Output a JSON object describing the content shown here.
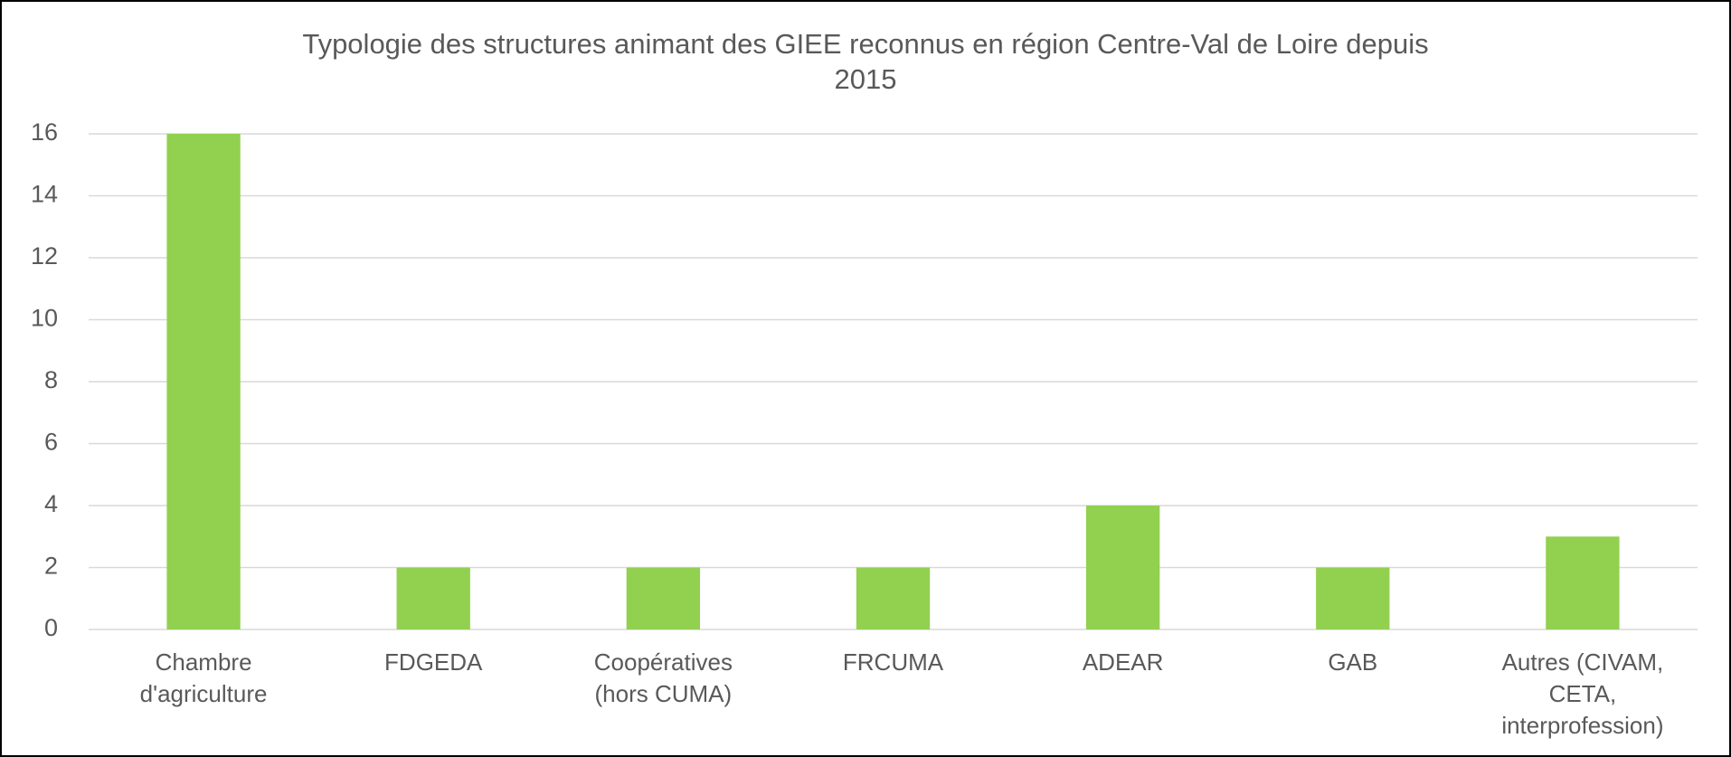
{
  "chart_data": {
    "type": "bar",
    "title": "Typologie des structures animant des GIEE reconnus en région Centre-Val de Loire depuis\n2015",
    "categories": [
      "Chambre\nd'agriculture",
      "FDGEDA",
      "Coopératives\n(hors CUMA)",
      "FRCUMA",
      "ADEAR",
      "GAB",
      "Autres (CIVAM,\nCETA,\ninterprofession)"
    ],
    "values": [
      16,
      2,
      2,
      2,
      4,
      2,
      3
    ],
    "color": "#92d050",
    "ylim": [
      0,
      16
    ],
    "yticks": [
      0,
      2,
      4,
      6,
      8,
      10,
      12,
      14,
      16
    ],
    "grid": true
  }
}
